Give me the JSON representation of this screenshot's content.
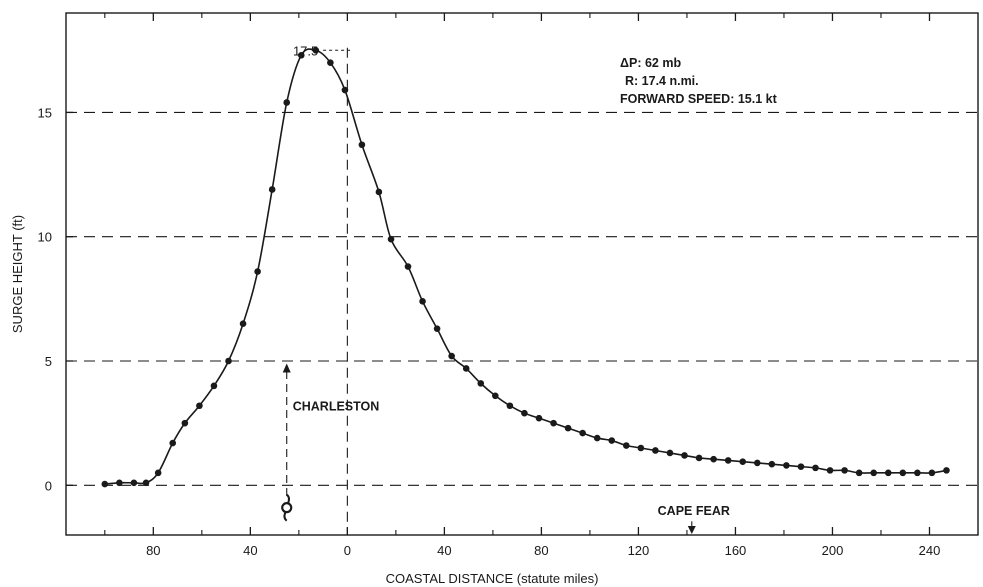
{
  "chart_data": {
    "type": "line",
    "title": "",
    "xlabel": "COASTAL DISTANCE (statute miles)",
    "ylabel": "SURGE HEIGHT (ft)",
    "xlim": [
      -116,
      260
    ],
    "ylim": [
      -2,
      19
    ],
    "x_ticks": [
      -80,
      -40,
      0,
      40,
      80,
      120,
      160,
      200,
      240
    ],
    "x_tick_labels": [
      "80",
      "40",
      "0",
      "40",
      "80",
      "120",
      "160",
      "200",
      "240"
    ],
    "y_ticks": [
      0,
      5,
      10,
      15
    ],
    "y_tick_labels": [
      "0",
      "5",
      "10",
      "15"
    ],
    "gridlines": {
      "horizontal_dashed": [
        0,
        5,
        10,
        15
      ]
    },
    "series": [
      {
        "x": [
          -100,
          -94,
          -88,
          -83,
          -78,
          -72,
          -67,
          -61,
          -55,
          -49,
          -43,
          -37,
          -31,
          -25,
          -19,
          -13,
          -7,
          -1,
          6,
          13,
          18,
          25,
          31,
          37,
          43,
          49,
          55,
          61,
          67,
          73,
          79,
          85,
          91,
          97,
          103,
          109,
          115,
          121,
          127,
          133,
          139,
          145,
          151,
          157,
          163,
          169,
          175,
          181,
          187,
          193,
          199,
          205,
          211,
          217,
          223,
          229,
          235,
          241,
          247
        ],
        "y": [
          0.05,
          0.1,
          0.1,
          0.1,
          0.5,
          1.7,
          2.5,
          3.2,
          4.0,
          5.0,
          6.5,
          8.6,
          11.9,
          15.4,
          17.3,
          17.5,
          17.0,
          15.9,
          13.7,
          11.8,
          9.9,
          8.8,
          7.4,
          6.3,
          5.2,
          4.7,
          4.1,
          3.6,
          3.2,
          2.9,
          2.7,
          2.5,
          2.3,
          2.1,
          1.9,
          1.8,
          1.6,
          1.5,
          1.4,
          1.3,
          1.2,
          1.1,
          1.05,
          1.0,
          0.95,
          0.9,
          0.85,
          0.8,
          0.75,
          0.7,
          0.6,
          0.6,
          0.5,
          0.5,
          0.5,
          0.5,
          0.5,
          0.5,
          0.6
        ],
        "marker": "filled-circle",
        "color": "#1a1a1a"
      }
    ],
    "annotations": {
      "peak_label": "17.5",
      "peak_value": 17.5,
      "peak_x": 0,
      "info_lines": [
        "ΔP:   62 mb",
        "R:   17.4 n.mi.",
        "FORWARD SPEED:   15.1 kt"
      ],
      "charleston_label": "CHARLESTON",
      "charleston_x": -25,
      "cape_fear_label": "CAPE FEAR",
      "cape_fear_x": 142,
      "storm_icon": "hurricane-symbol-icon"
    }
  }
}
